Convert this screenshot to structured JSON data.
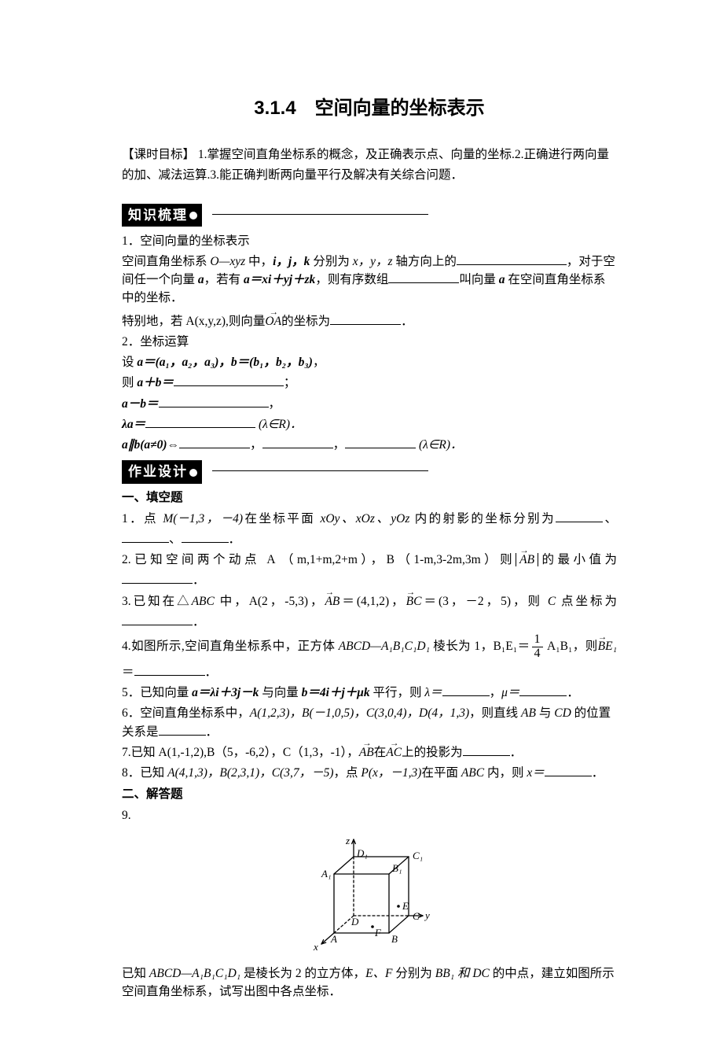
{
  "title": "3.1.4　空间向量的坐标表示",
  "objective_label": "【课时目标】",
  "objective_text": " 1.掌握空间直角坐标系的概念，及正确表示点、向量的坐标.2.正确进行两向量的加、减法运算.3.能正确判断两向量平行及解决有关综合问题．",
  "banner1": "知识梳理",
  "banner2": "作业设计",
  "k1_heading": "1．空间向量的坐标表示",
  "k1_l1a": "空间直角坐标系 ",
  "k1_oxyz": "O—xyz",
  "k1_l1b": " 中，",
  "k1_ijk": "i，j，k",
  "k1_l1c": " 分别为 ",
  "k1_xyz": "x，y，z",
  "k1_l1d": " 轴方向上的",
  "k1_l1e": "，对于空间任一个向量 ",
  "k1_a": "a",
  "k1_l1f": "，若有 ",
  "k1_eq1": "a＝xi＋yj＋zk",
  "k1_l1g": "，则有序数组",
  "k1_l1h": "叫向量 ",
  "k1_l1i": " 在空间直角坐标系中的坐标．",
  "k1_special_a": "特别地，若 A(x,y,z),则向量",
  "k1_OA": "OA",
  "k1_special_b": "的坐标为",
  "k2_heading": "2．坐标运算",
  "k2_set": "设 ",
  "k2_ab": "a＝(a₁，a₂，a₃)，b＝(b₁，b₂，b₃)",
  "k2_then": "则 ",
  "k2_aplusb": "a＋b＝",
  "k2_aminusb": "a－b＝",
  "k2_lambda_a": "λa＝",
  "k2_domain1": " (λ∈R)．",
  "k2_parallel": "a∥b(a≠0)⇔",
  "k2_comma": "，",
  "k2_domain2": " (λ∈R)．",
  "s1_heading": "一、填空题",
  "q1_a": "1．点",
  "q1_M": " M(－1,3，－4)",
  "q1_b": "在坐标平面",
  "q1_xoy": " xOy、xOz、yOz ",
  "q1_c": "内的射影的坐标分别为",
  "q1_d": "、",
  "q2_a": "2.已知空间两个动点 A （m,1+m,2+m），B（1-m,3-2m,3m）则",
  "q2_AB": "AB",
  "q2_b": "的最小值为",
  "q3_a": "3.已知在△",
  "q3_ABC": "ABC",
  "q3_b": " 中，A(2，-5,3)，",
  "q3_ABv": "AB",
  "q3_c": "＝(4,1,2)，",
  "q3_BCv": "BC",
  "q3_d": "＝(3，－2，5)，则",
  "q3_C": " C ",
  "q3_e": "点坐标为",
  "q4_a": "4.如图所示,空间直角坐标系中，正方体",
  "q4_cube": " ABCD—A₁B₁C₁D₁ ",
  "q4_b": "棱长为 1，B₁E₁＝",
  "q4_frac_num": "1",
  "q4_frac_den": "4",
  "q4_c": " A₁B₁，则",
  "q4_BE1": "BE₁",
  "q4_eq": "＝",
  "q5_a": "5．已知向量 ",
  "q5_avec": "a＝λi＋3j－k",
  "q5_b": " 与向量 ",
  "q5_bvec": "b＝4i＋j＋μk",
  "q5_c": " 平行，则 ",
  "q5_lambda": "λ＝",
  "q5_mu": "μ＝",
  "q6_a": "6．空间直角坐标系中，",
  "q6_pts": "A(1,2,3)，B(－1,0,5)，C(3,0,4)，D(4，1,3)",
  "q6_b": "，则直线 ",
  "q6_AB": "AB",
  "q6_c": " 与 ",
  "q6_CD": "CD",
  "q6_d": " 的位置关系是",
  "q7_a": "7.已知 A(1,-1,2),B（5，-6,2），C（1,3，-1），",
  "q7_ABv": "AB",
  "q7_on": "在",
  "q7_ACv": "AC",
  "q7_b": "上的投影为",
  "q8_a": "8．已知 ",
  "q8_pts": "A(4,1,3)，B(2,3,1)，C(3,7，－5)",
  "q8_b": "，点 ",
  "q8_P": "P(x，－1,3)",
  "q8_c": "在平面 ",
  "q8_ABCp": "ABC",
  "q8_d": " 内，则 ",
  "q8_x": "x＝",
  "s2_heading": "二、解答题",
  "q9_num": "9.",
  "q9_a": "已知 ",
  "q9_cube": "ABCD—A₁B₁C₁D₁",
  "q9_b": " 是棱长为 2 的立方体，",
  "q9_EF": "E、F",
  "q9_c": " 分别为 ",
  "q9_BB1DC": "BB₁ 和 DC",
  "q9_d": " 的中点，建立如图所示空间直角坐标系，试写出图中各点坐标．",
  "period": "．",
  "semicolon": "；",
  "comma_cn": "，",
  "figure": {
    "labels": {
      "z": "z",
      "y": "y",
      "x": "x",
      "A": "A",
      "B": "B",
      "C": "C",
      "D": "D",
      "A1": "A₁",
      "B1": "B₁",
      "C1": "C₁",
      "D1": "D₁",
      "E": "E",
      "F": "F"
    },
    "colors": {
      "stroke": "#000000",
      "bg": "#ffffff"
    },
    "line_width": 1.3,
    "dash": "3,3",
    "width": 160,
    "height": 155
  },
  "colors": {
    "text": "#000000",
    "bg": "#ffffff",
    "banner_bg": "#000000",
    "banner_fg": "#ffffff"
  }
}
